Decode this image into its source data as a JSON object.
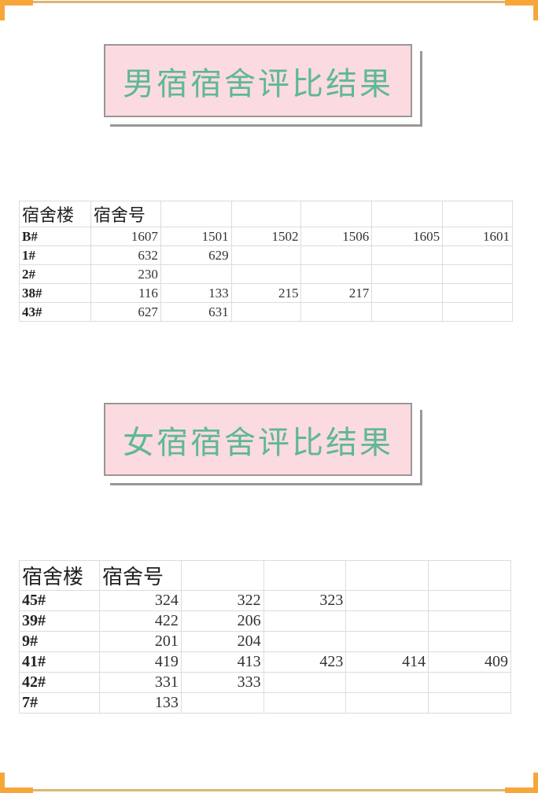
{
  "colors": {
    "frame": "#f7a63a",
    "title_bg": "#fbdbe0",
    "title_text": "#5fb894"
  },
  "male": {
    "title": "男宿宿舍评比结果",
    "headers": [
      "宿舍楼",
      "宿舍号"
    ],
    "rows": [
      {
        "building": "B#",
        "rooms": [
          "1607",
          "1501",
          "1502",
          "1506",
          "1605",
          "1601"
        ]
      },
      {
        "building": "1#",
        "rooms": [
          "632",
          "629"
        ]
      },
      {
        "building": "2#",
        "rooms": [
          "230"
        ]
      },
      {
        "building": "38#",
        "rooms": [
          "116",
          "133",
          "215",
          "217"
        ]
      },
      {
        "building": "43#",
        "rooms": [
          "627",
          "631"
        ]
      }
    ]
  },
  "female": {
    "title": "女宿宿舍评比结果",
    "headers": [
      "宿舍楼",
      "宿舍号"
    ],
    "rows": [
      {
        "building": "45#",
        "rooms": [
          "324",
          "322",
          "323"
        ]
      },
      {
        "building": "39#",
        "rooms": [
          "422",
          "206"
        ]
      },
      {
        "building": "9#",
        "rooms": [
          "201",
          "204"
        ]
      },
      {
        "building": "41#",
        "rooms": [
          "419",
          "413",
          "423",
          "414",
          "409"
        ]
      },
      {
        "building": "42#",
        "rooms": [
          "331",
          "333"
        ]
      },
      {
        "building": "7#",
        "rooms": [
          "133"
        ]
      }
    ]
  }
}
